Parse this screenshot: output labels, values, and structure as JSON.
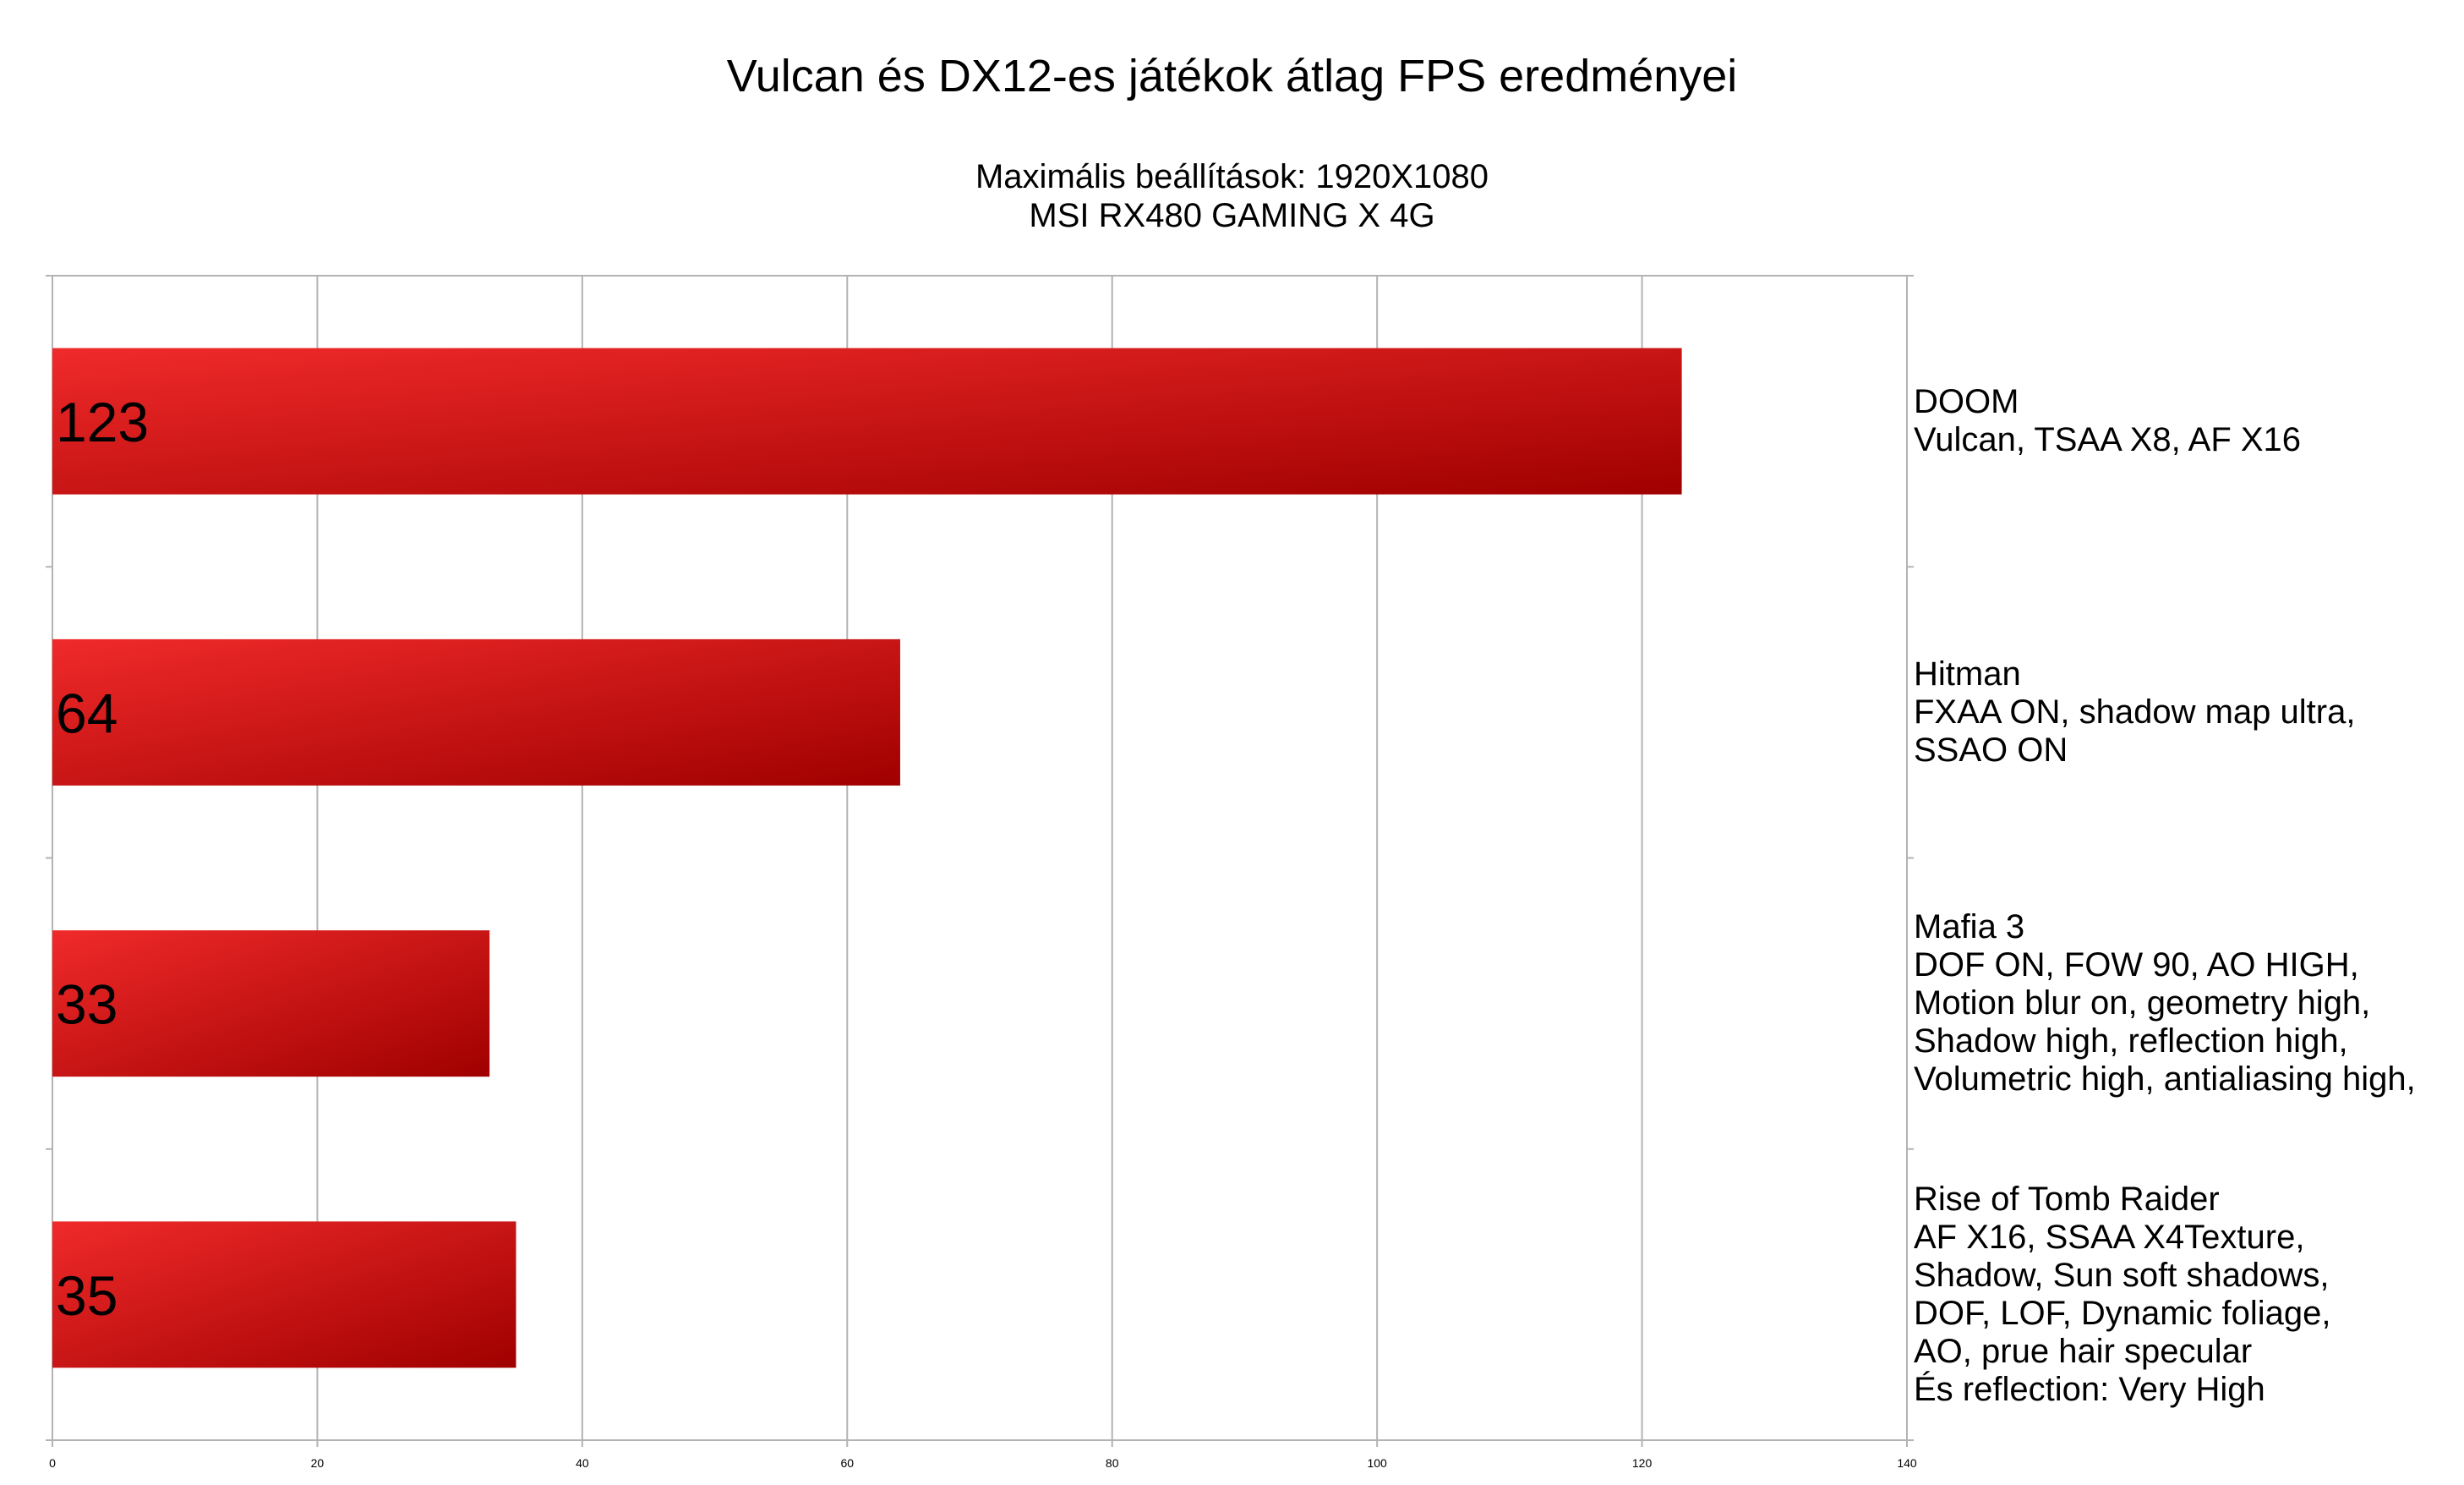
{
  "title": "Vulcan és DX12-es játékok átlag FPS eredményei",
  "subtitle_lines": [
    "Maximális beállítások: 1920X1080",
    "MSI RX480 GAMING X 4G"
  ],
  "colors": {
    "bar_light": "#f02a2a",
    "bar_dark": "#a00000",
    "grid": "#b3b3b3",
    "axis": "#b3b3b3"
  },
  "chart_data": {
    "type": "bar",
    "orientation": "horizontal",
    "title": "Vulcan és DX12-es játékok átlag FPS eredményei",
    "subtitle": "Maximális beállítások: 1920X1080 MSI RX480 GAMING X 4G",
    "xlim": [
      0,
      140
    ],
    "xticks": [
      0,
      20,
      40,
      60,
      80,
      100,
      120,
      140
    ],
    "grid": true,
    "category_labels_position": "right",
    "categories": [
      [
        "DOOM",
        "Vulcan, TSAA X8, AF X16"
      ],
      [
        "Hitman",
        "FXAA ON, shadow map ultra,",
        "SSAO ON"
      ],
      [
        "Mafia 3",
        "DOF ON, FOW 90, AO HIGH,",
        "Motion blur on, geometry high,",
        "Shadow high, reflection high,",
        "Volumetric high, antialiasing high,"
      ],
      [
        "Rise of Tomb Raider",
        "AF X16, SSAA X4Texture,",
        "Shadow, Sun soft shadows,",
        "DOF, LOF, Dynamic foliage,",
        "AO, prue hair specular",
        "És reflection: Very High"
      ]
    ],
    "values": [
      123,
      64,
      33,
      35
    ],
    "data_labels": [
      "123",
      "64",
      "33",
      "35"
    ]
  }
}
